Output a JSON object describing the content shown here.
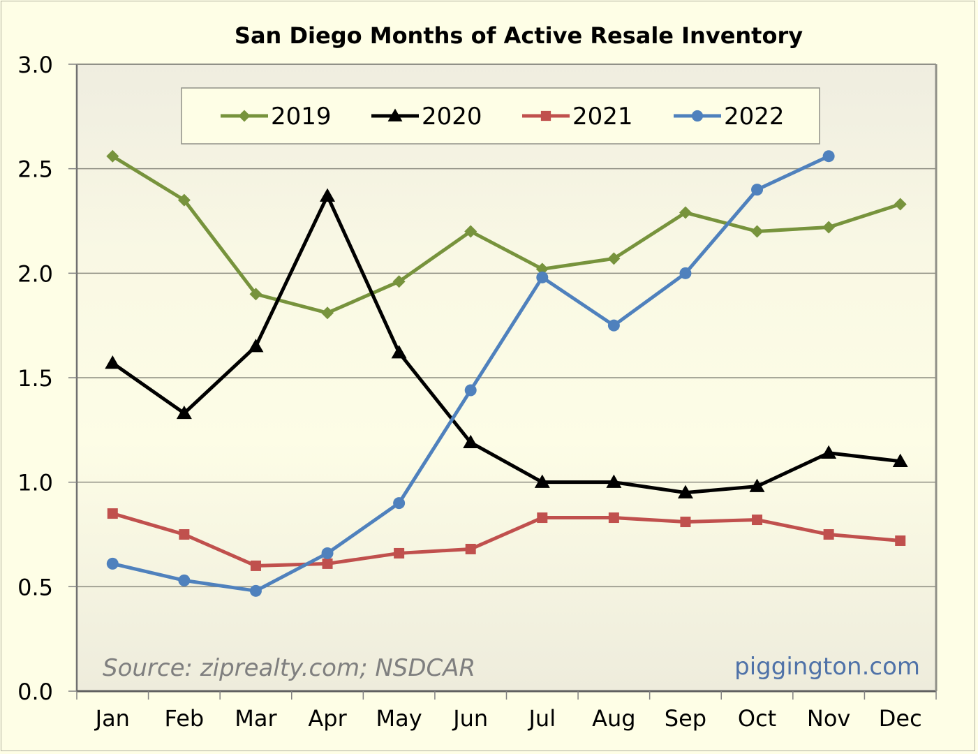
{
  "chart_data": {
    "type": "line",
    "title": "San Diego Months of Active Resale Inventory",
    "xlabel": "",
    "ylabel": "",
    "categories": [
      "Jan",
      "Feb",
      "Mar",
      "Apr",
      "May",
      "Jun",
      "Jul",
      "Aug",
      "Sep",
      "Oct",
      "Nov",
      "Dec"
    ],
    "ylim": [
      0,
      3.0
    ],
    "yticks": [
      "0.0",
      "0.5",
      "1.0",
      "1.5",
      "2.0",
      "2.5",
      "3.0"
    ],
    "ytick_values": [
      0,
      0.5,
      1.0,
      1.5,
      2.0,
      2.5,
      3.0
    ],
    "grid": true,
    "legend_position": "top-center",
    "series": [
      {
        "name": "2019",
        "color": "#77933c",
        "marker": "diamond",
        "values": [
          2.56,
          2.35,
          1.9,
          1.81,
          1.96,
          2.2,
          2.02,
          2.07,
          2.29,
          2.2,
          2.22,
          2.33
        ]
      },
      {
        "name": "2020",
        "color": "#000000",
        "marker": "triangle",
        "values": [
          1.57,
          1.33,
          1.65,
          2.37,
          1.62,
          1.19,
          1.0,
          1.0,
          0.95,
          0.98,
          1.14,
          1.1
        ]
      },
      {
        "name": "2021",
        "color": "#c0504d",
        "marker": "square",
        "values": [
          0.85,
          0.75,
          0.6,
          0.61,
          0.66,
          0.68,
          0.83,
          0.83,
          0.81,
          0.82,
          0.75,
          0.72
        ]
      },
      {
        "name": "2022",
        "color": "#4f81bd",
        "marker": "circle",
        "values": [
          0.61,
          0.53,
          0.48,
          0.66,
          0.9,
          1.44,
          1.98,
          1.75,
          2.0,
          2.4,
          2.56,
          null
        ]
      }
    ],
    "annotations": [
      {
        "id": "source",
        "text": "Source: ziprealty.com; NSDCAR",
        "position": "bottom-left"
      },
      {
        "id": "brand",
        "text": "piggington.com",
        "position": "bottom-right"
      }
    ]
  }
}
